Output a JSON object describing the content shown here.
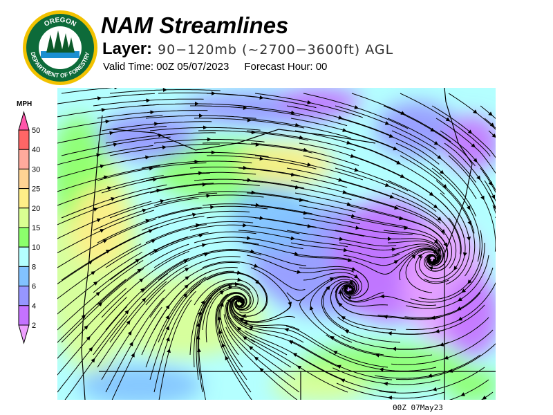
{
  "header": {
    "title": "NAM Streamlines",
    "layer_label": "Layer:",
    "layer_value": "90−120mb (~2700−3600ft) AGL",
    "valid_time": "Valid Time: 00Z  05/07/2023",
    "forecast_hour": "Forecast Hour: 00"
  },
  "logo": {
    "top_text": "OREGON",
    "bottom_text": "DEPARTMENT OF FORESTRY"
  },
  "legend": {
    "unit": "MPH",
    "labels": [
      "50",
      "40",
      "30",
      "25",
      "20",
      "15",
      "10",
      "8",
      "6",
      "4",
      "2"
    ],
    "colors": [
      "#ff6666",
      "#ffaa9c",
      "#ffd394",
      "#ffee88",
      "#daff92",
      "#8cff6c",
      "#b4ffff",
      "#82c2ff",
      "#9696ff",
      "#c472ff"
    ],
    "over_color": "#ff55aa",
    "under_color": "#eea0ff"
  },
  "footer": {
    "timestamp": "00Z 07May23"
  }
}
